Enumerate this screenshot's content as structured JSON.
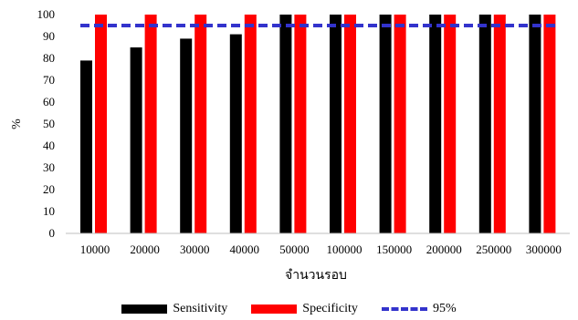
{
  "chart_data": {
    "type": "bar",
    "categories": [
      "10000",
      "20000",
      "30000",
      "40000",
      "50000",
      "100000",
      "150000",
      "200000",
      "250000",
      "300000"
    ],
    "series": [
      {
        "name": "Sensitivity",
        "color": "#000000",
        "values": [
          79,
          85,
          89,
          91,
          100,
          100,
          100,
          100,
          100,
          100
        ]
      },
      {
        "name": "Specificity",
        "color": "#ff0000",
        "values": [
          100,
          100,
          100,
          100,
          100,
          100,
          100,
          100,
          100,
          100
        ]
      }
    ],
    "reference_line": {
      "name": "95%",
      "value": 95,
      "color": "#3333cc",
      "style": "dashed"
    },
    "xlabel": "จำนวนรอบ",
    "ylabel": "%",
    "ylim": [
      0,
      100
    ],
    "yticks": [
      0,
      10,
      20,
      30,
      40,
      50,
      60,
      70,
      80,
      90,
      100
    ],
    "grid": false,
    "legend_position": "bottom"
  }
}
